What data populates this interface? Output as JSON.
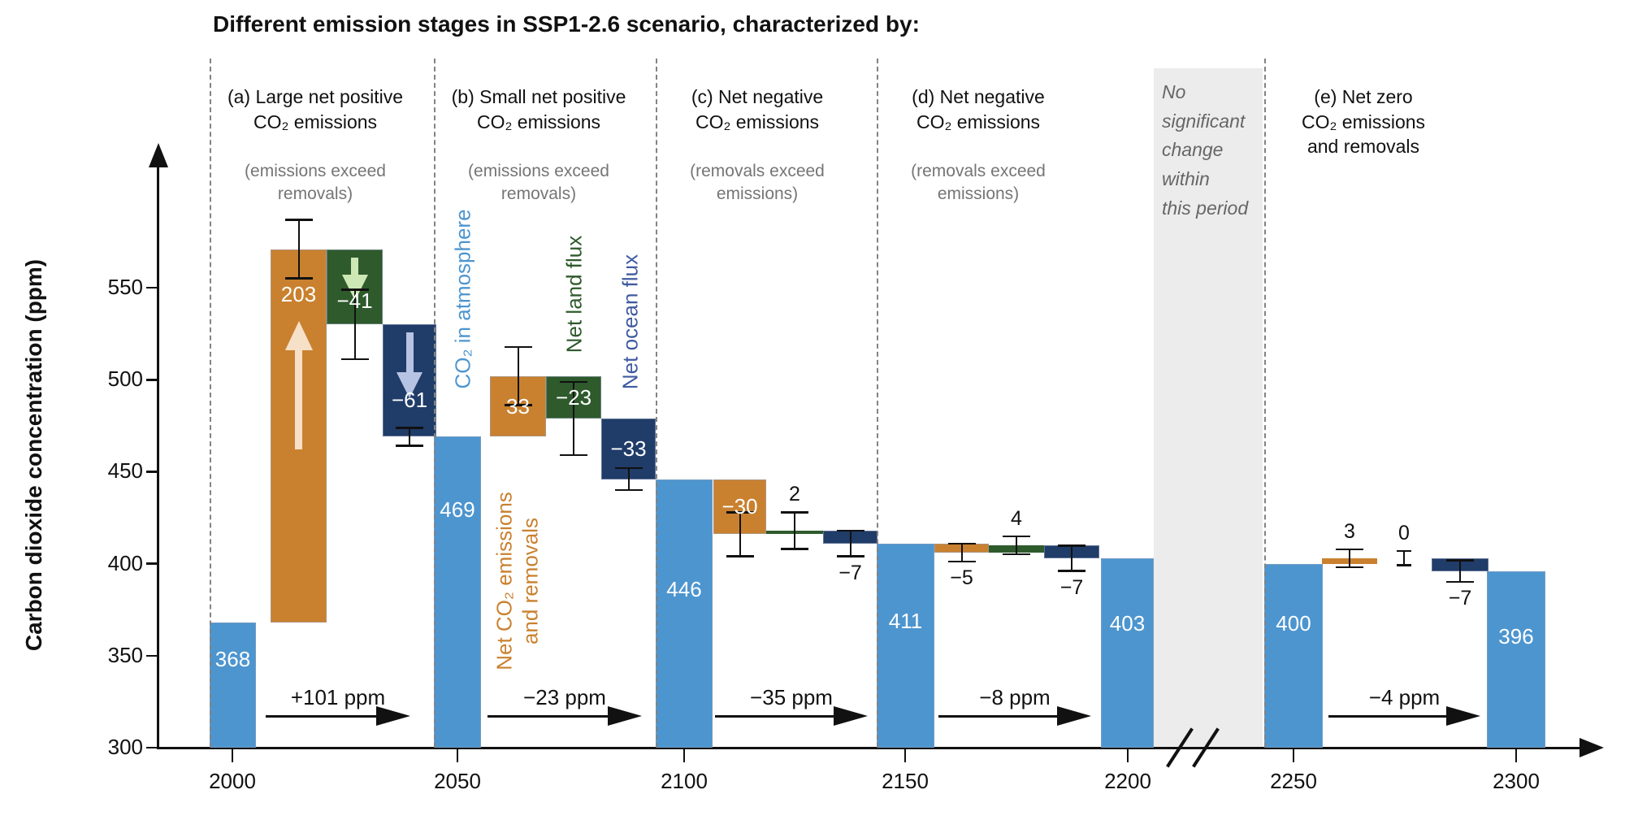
{
  "title": "Different emission stages in SSP1-2.6 scenario, characterized by:",
  "y_axis": {
    "label": "Carbon dioxide concentration (ppm)",
    "ticks": [
      300,
      350,
      400,
      450,
      500,
      550
    ]
  },
  "x_axis": {
    "ticks": [
      2000,
      2050,
      2100,
      2150,
      2200,
      2250,
      2300
    ]
  },
  "no_change_note": "No\nsignificant\nchange\nwithin\nthis period",
  "series_labels": {
    "atmosphere": "CO₂ in atmosphere",
    "net_line1": "Net CO₂ emissions",
    "net_line2": "and removals",
    "land": "Net land flux",
    "ocean": "Net ocean flux"
  },
  "colors": {
    "level": "#4d95cf",
    "net": "#c9812f",
    "land": "#2e5a2c",
    "ocean": "#203c68",
    "arrow_up": "#f6e0c8",
    "arrow_down_green": "#cde8b5",
    "arrow_down_blue": "#b7c3e3",
    "label_atmosphere": "#4d95cf",
    "label_net": "#c9812f",
    "label_land": "#2e5a2c",
    "label_ocean": "#3f5b9f",
    "band": "#ececec"
  },
  "chart_data": {
    "type": "bar",
    "subtype": "waterfall",
    "ylabel": "Carbon dioxide concentration (ppm)",
    "y_unit": "ppm",
    "ylim": [
      300,
      590
    ],
    "x_years": [
      2000,
      2050,
      2100,
      2150,
      2200,
      2250,
      2300
    ],
    "stages": [
      {
        "id": "a",
        "header": "(a) Large net positive\nCO₂ emissions",
        "sub": "(emissions exceed\nremovals)",
        "transition": "+101 ppm",
        "bars": [
          {
            "key": "start",
            "type": "level",
            "value": 368,
            "label": "368",
            "label_dy": 30
          },
          {
            "key": "net",
            "type": "delta",
            "value": 203,
            "label": "203",
            "label_pos": "in",
            "label_dy": 40,
            "err": 16,
            "err_at": "end",
            "arrow": "up"
          },
          {
            "key": "land",
            "type": "delta",
            "value": -41,
            "label": "−41",
            "label_pos": "in",
            "label_dy": 48,
            "err": 19,
            "err_at": "end",
            "arrow": "down"
          },
          {
            "key": "ocean",
            "type": "delta",
            "value": -61,
            "label": "−61",
            "label_pos": "in",
            "label_dy": 78,
            "err": 5,
            "err_at": "end",
            "arrow": "down"
          }
        ]
      },
      {
        "id": "b",
        "header": "(b) Small net positive\nCO₂ emissions",
        "sub": "(emissions exceed\nremovals)",
        "transition": "−23 ppm",
        "bars": [
          {
            "key": "start",
            "type": "level",
            "value": 469,
            "label": "469",
            "label_dy": 75
          },
          {
            "key": "net",
            "type": "delta",
            "value": 33,
            "label": "33",
            "label_pos": "in",
            "err": 16,
            "err_at": "end"
          },
          {
            "key": "land",
            "type": "delta",
            "value": -23,
            "label": "−23",
            "label_pos": "in",
            "err": 20,
            "err_at": "end"
          },
          {
            "key": "ocean",
            "type": "delta",
            "value": -33,
            "label": "−33",
            "label_pos": "in",
            "err": 6,
            "err_at": "end"
          }
        ]
      },
      {
        "id": "c",
        "header": "(c) Net negative\nCO₂ emissions",
        "sub": "(removals exceed\nemissions)",
        "transition": "−35 ppm",
        "bars": [
          {
            "key": "start",
            "type": "level",
            "value": 446,
            "label": "446",
            "label_dy": 120
          },
          {
            "key": "net",
            "type": "delta",
            "value": -30,
            "label": "−30",
            "label_pos": "in",
            "err": 12,
            "err_at": "end"
          },
          {
            "key": "land",
            "type": "delta",
            "value": 2,
            "label": "2",
            "label_pos": "above",
            "err": 10,
            "err_at": "end"
          },
          {
            "key": "ocean",
            "type": "delta",
            "value": -7,
            "label": "−7",
            "label_pos": "below",
            "err": 7,
            "err_at": "end"
          }
        ]
      },
      {
        "id": "d",
        "header": "(d) Net negative\nCO₂ emissions",
        "sub": "(removals exceed\nemissions)",
        "transition": "−8 ppm",
        "bars": [
          {
            "key": "start",
            "type": "level",
            "value": 411,
            "label": "411",
            "label_dy": 80
          },
          {
            "key": "net",
            "type": "delta",
            "value": -5,
            "label": "−5",
            "label_pos": "below",
            "err": 5,
            "err_at": "end"
          },
          {
            "key": "land",
            "type": "delta",
            "value": 4,
            "label": "4",
            "label_pos": "above",
            "err": 5,
            "err_at": "end"
          },
          {
            "key": "ocean",
            "type": "delta",
            "value": -7,
            "label": "−7",
            "label_pos": "below",
            "err": 7,
            "err_at": "end"
          },
          {
            "key": "end",
            "type": "level",
            "value": 403,
            "label": "403",
            "label_dy": 65
          }
        ]
      },
      {
        "id": "e",
        "header": "(e) Net zero\nCO₂ emissions\nand removals",
        "sub": "",
        "transition": "−4 ppm",
        "bars": [
          {
            "key": "start",
            "type": "level",
            "value": 400,
            "label": "400",
            "label_dy": 58
          },
          {
            "key": "net",
            "type": "delta",
            "value": 3,
            "label": "3",
            "label_pos": "above",
            "err": 5,
            "err_at": "end"
          },
          {
            "key": "land",
            "type": "delta",
            "value": 0,
            "label": "0",
            "label_pos": "above",
            "err": 4,
            "err_at": "center"
          },
          {
            "key": "ocean",
            "type": "delta",
            "value": -7,
            "label": "−7",
            "label_pos": "below",
            "err": 6,
            "err_at": "end"
          },
          {
            "key": "end",
            "type": "level",
            "value": 396,
            "label": "396",
            "label_dy": 65
          }
        ]
      }
    ]
  }
}
